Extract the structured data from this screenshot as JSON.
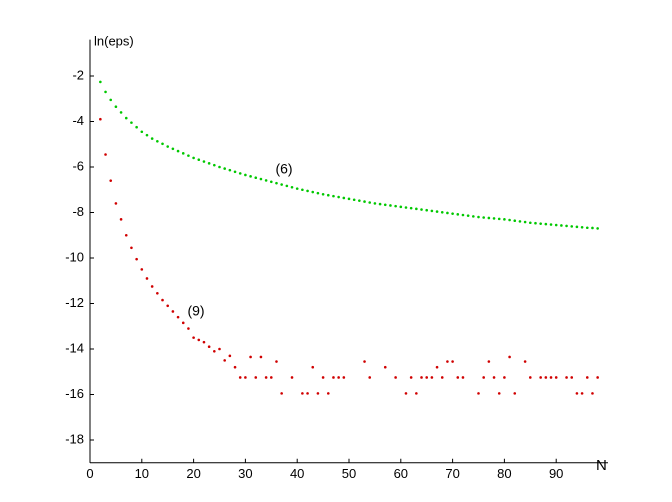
{
  "chart_data": {
    "type": "scatter",
    "y_label": "ln(eps)",
    "x_label": "N",
    "annotations": [
      "(6)",
      "(9)"
    ],
    "xlim": [
      0,
      100
    ],
    "ylim": [
      -19,
      -0.4
    ],
    "xticks": [
      0,
      10,
      20,
      30,
      40,
      50,
      60,
      70,
      80,
      90
    ],
    "yticks": [
      -2,
      -4,
      -6,
      -8,
      -10,
      -12,
      -14,
      -16,
      -18
    ],
    "grid": false,
    "x": [
      2,
      3,
      4,
      5,
      6,
      7,
      8,
      9,
      10,
      11,
      12,
      13,
      14,
      15,
      16,
      17,
      18,
      19,
      20,
      21,
      22,
      23,
      24,
      25,
      26,
      27,
      28,
      29,
      30,
      31,
      32,
      33,
      34,
      35,
      36,
      37,
      38,
      39,
      40,
      41,
      42,
      43,
      44,
      45,
      46,
      47,
      48,
      49,
      50,
      51,
      52,
      53,
      54,
      55,
      56,
      57,
      58,
      59,
      60,
      61,
      62,
      63,
      64,
      65,
      66,
      67,
      68,
      69,
      70,
      71,
      72,
      73,
      74,
      75,
      76,
      77,
      78,
      79,
      80,
      81,
      82,
      83,
      84,
      85,
      86,
      87,
      88,
      89,
      90,
      91,
      92,
      93,
      94,
      95,
      96,
      97,
      98
    ],
    "series": [
      {
        "name": "(6)",
        "color": "#00c800",
        "values": [
          -2.26,
          -2.7,
          -3.05,
          -3.35,
          -3.6,
          -3.85,
          -4.05,
          -4.25,
          -4.45,
          -4.6,
          -4.75,
          -4.87,
          -4.98,
          -5.1,
          -5.2,
          -5.3,
          -5.4,
          -5.5,
          -5.6,
          -5.68,
          -5.76,
          -5.84,
          -5.92,
          -6.0,
          -6.07,
          -6.14,
          -6.21,
          -6.28,
          -6.35,
          -6.41,
          -6.47,
          -6.53,
          -6.59,
          -6.65,
          -6.71,
          -6.77,
          -6.83,
          -6.89,
          -6.95,
          -7.0,
          -7.05,
          -7.1,
          -7.15,
          -7.2,
          -7.24,
          -7.28,
          -7.32,
          -7.36,
          -7.4,
          -7.44,
          -7.48,
          -7.52,
          -7.56,
          -7.6,
          -7.63,
          -7.66,
          -7.69,
          -7.72,
          -7.75,
          -7.78,
          -7.81,
          -7.84,
          -7.87,
          -7.9,
          -7.93,
          -7.96,
          -7.99,
          -8.02,
          -8.05,
          -8.08,
          -8.11,
          -8.14,
          -8.17,
          -8.2,
          -8.22,
          -8.24,
          -8.26,
          -8.28,
          -8.3,
          -8.33,
          -8.36,
          -8.39,
          -8.42,
          -8.45,
          -8.47,
          -8.49,
          -8.51,
          -8.53,
          -8.55,
          -8.57,
          -8.59,
          -8.61,
          -8.63,
          -8.65,
          -8.67,
          -8.68,
          -8.7
        ]
      },
      {
        "name": "(9)",
        "color": "#d00000",
        "values": [
          -3.9,
          -5.45,
          -6.6,
          -7.6,
          -8.3,
          -9.0,
          -9.55,
          -10.05,
          -10.5,
          -10.9,
          -11.25,
          -11.55,
          -11.85,
          -12.1,
          -12.35,
          -12.6,
          -12.85,
          -13.1,
          -13.5,
          -13.6,
          -13.7,
          -13.9,
          -14.1,
          -14.0,
          -14.5,
          -14.3,
          -14.8,
          -15.25,
          -15.25,
          -14.35,
          -15.25,
          -14.35,
          -15.25,
          -15.25,
          -14.55,
          -15.95,
          null,
          -15.25,
          null,
          -15.95,
          -15.95,
          -14.8,
          -15.95,
          -15.25,
          -15.95,
          -15.25,
          -15.25,
          -15.25,
          null,
          null,
          null,
          -14.55,
          -15.25,
          null,
          null,
          -14.8,
          null,
          -15.25,
          null,
          -15.95,
          -15.25,
          -15.95,
          -15.25,
          -15.25,
          -15.25,
          -14.8,
          -15.25,
          -14.55,
          -14.55,
          -15.25,
          -15.25,
          null,
          null,
          -15.95,
          -15.25,
          -14.55,
          -15.25,
          -15.95,
          -15.25,
          -14.35,
          -15.95,
          null,
          -14.55,
          -15.25,
          null,
          -15.25,
          -15.25,
          -15.25,
          -15.25,
          null,
          -15.25,
          -15.25,
          -15.95,
          -15.95,
          -15.25,
          -15.95,
          -15.25
        ]
      }
    ]
  }
}
